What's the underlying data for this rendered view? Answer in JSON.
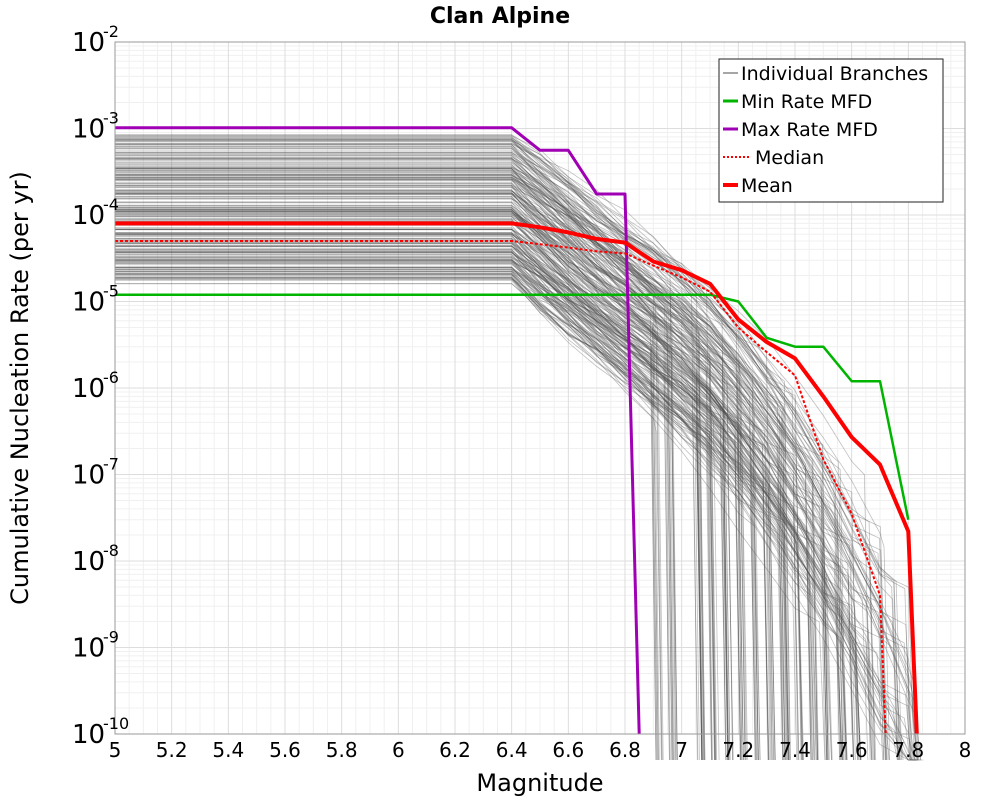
{
  "chart_data": {
    "type": "line",
    "title": "Clan Alpine",
    "xlabel": "Magnitude",
    "ylabel": "Cumulative Nucleation Rate (per yr)",
    "xlim": [
      5,
      8
    ],
    "ylim": [
      1e-10,
      0.01
    ],
    "yscale": "log",
    "xticks": [
      "5",
      "5.2",
      "5.4",
      "5.6",
      "5.8",
      "6",
      "6.2",
      "6.4",
      "6.6",
      "6.8",
      "7",
      "7.2",
      "7.4",
      "7.6",
      "7.8",
      "8"
    ],
    "ytick_exponents": [
      "-2",
      "-3",
      "-4",
      "-5",
      "-6",
      "-7",
      "-8",
      "-9",
      "-10"
    ],
    "ytick_base": "10",
    "grid": true,
    "legend_position": "top-right",
    "legend": [
      "Individual Branches",
      "Min Rate MFD",
      "Max Rate MFD",
      "Median",
      "Mean"
    ],
    "colors": {
      "branches": "#4d4d4d",
      "min": "#00b400",
      "max": "#a000b4",
      "median": "#ff0000",
      "mean": "#ff0000"
    },
    "series": [
      {
        "name": "Min Rate MFD",
        "x": [
          5.0,
          7.1,
          7.2,
          7.3,
          7.4,
          7.5,
          7.6,
          7.7,
          7.8
        ],
        "y": [
          1.2e-05,
          1.2e-05,
          1e-05,
          3.8e-06,
          3e-06,
          3e-06,
          1.2e-06,
          1.2e-06,
          3e-08
        ]
      },
      {
        "name": "Max Rate MFD",
        "x": [
          5.0,
          6.4,
          6.5,
          6.6,
          6.7,
          6.8,
          6.85
        ],
        "y": [
          0.00102,
          0.00102,
          0.00056,
          0.00056,
          0.000175,
          0.000175,
          1e-10
        ]
      },
      {
        "name": "Median",
        "x": [
          5.0,
          6.4,
          6.5,
          6.6,
          6.7,
          6.8,
          6.9,
          7.0,
          7.1,
          7.2,
          7.3,
          7.4,
          7.5,
          7.6,
          7.7,
          7.72
        ],
        "y": [
          5e-05,
          5e-05,
          4.6e-05,
          4.2e-05,
          3.8e-05,
          3.6e-05,
          2.6e-05,
          1.9e-05,
          1.3e-05,
          5e-06,
          2.6e-06,
          1.4e-06,
          1.5e-07,
          3.5e-08,
          4e-09,
          1e-10
        ]
      },
      {
        "name": "Mean",
        "x": [
          5.0,
          6.4,
          6.5,
          6.6,
          6.7,
          6.8,
          6.9,
          7.0,
          7.1,
          7.2,
          7.3,
          7.4,
          7.5,
          7.6,
          7.7,
          7.8,
          7.83
        ],
        "y": [
          8e-05,
          8e-05,
          7.2e-05,
          6.3e-05,
          5.3e-05,
          4.8e-05,
          2.9e-05,
          2.3e-05,
          1.6e-05,
          6.2e-06,
          3.4e-06,
          2.2e-06,
          8e-07,
          2.7e-07,
          1.3e-07,
          2.2e-08,
          1e-10
        ]
      }
    ]
  }
}
